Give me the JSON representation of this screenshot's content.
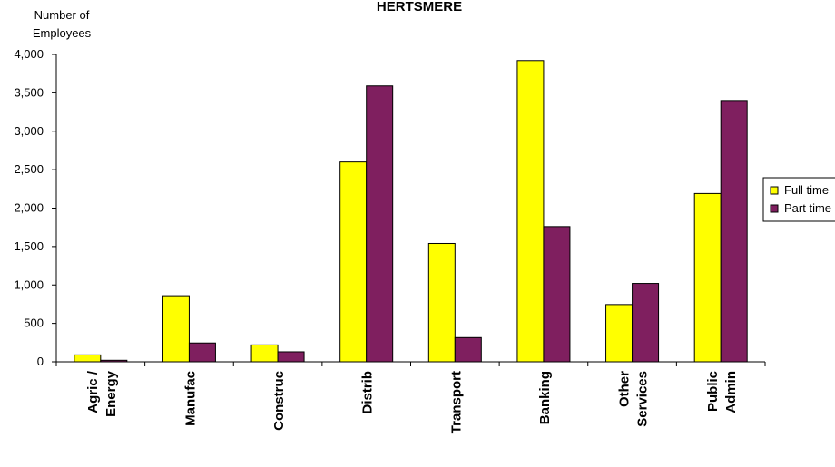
{
  "chart_data": {
    "type": "bar",
    "title": "HERTSMERE",
    "ylabel": [
      "Number of",
      "Employees"
    ],
    "xlabel": "",
    "ylim": [
      0,
      4000
    ],
    "yticks": [
      0,
      500,
      1000,
      1500,
      2000,
      2500,
      3000,
      3500,
      4000
    ],
    "ytick_labels": [
      "0",
      "500",
      "1,000",
      "1,500",
      "2,000",
      "2,500",
      "3,000",
      "3,500",
      "4,000"
    ],
    "categories": [
      [
        "Agric /",
        "Energy"
      ],
      [
        "Manufac"
      ],
      [
        "Construc"
      ],
      [
        "Distrib"
      ],
      [
        "Transport"
      ],
      [
        "Banking"
      ],
      [
        "Other",
        "Services"
      ],
      [
        "Public",
        "Admin"
      ]
    ],
    "series": [
      {
        "name": "Full time",
        "color": "#ffff00",
        "values": [
          90,
          860,
          220,
          2600,
          1540,
          3920,
          745,
          2190
        ]
      },
      {
        "name": "Part time",
        "color": "#7f1f5f",
        "values": [
          20,
          245,
          130,
          3590,
          315,
          1760,
          1020,
          3400
        ]
      }
    ],
    "legend_position": "right",
    "grid": false
  }
}
